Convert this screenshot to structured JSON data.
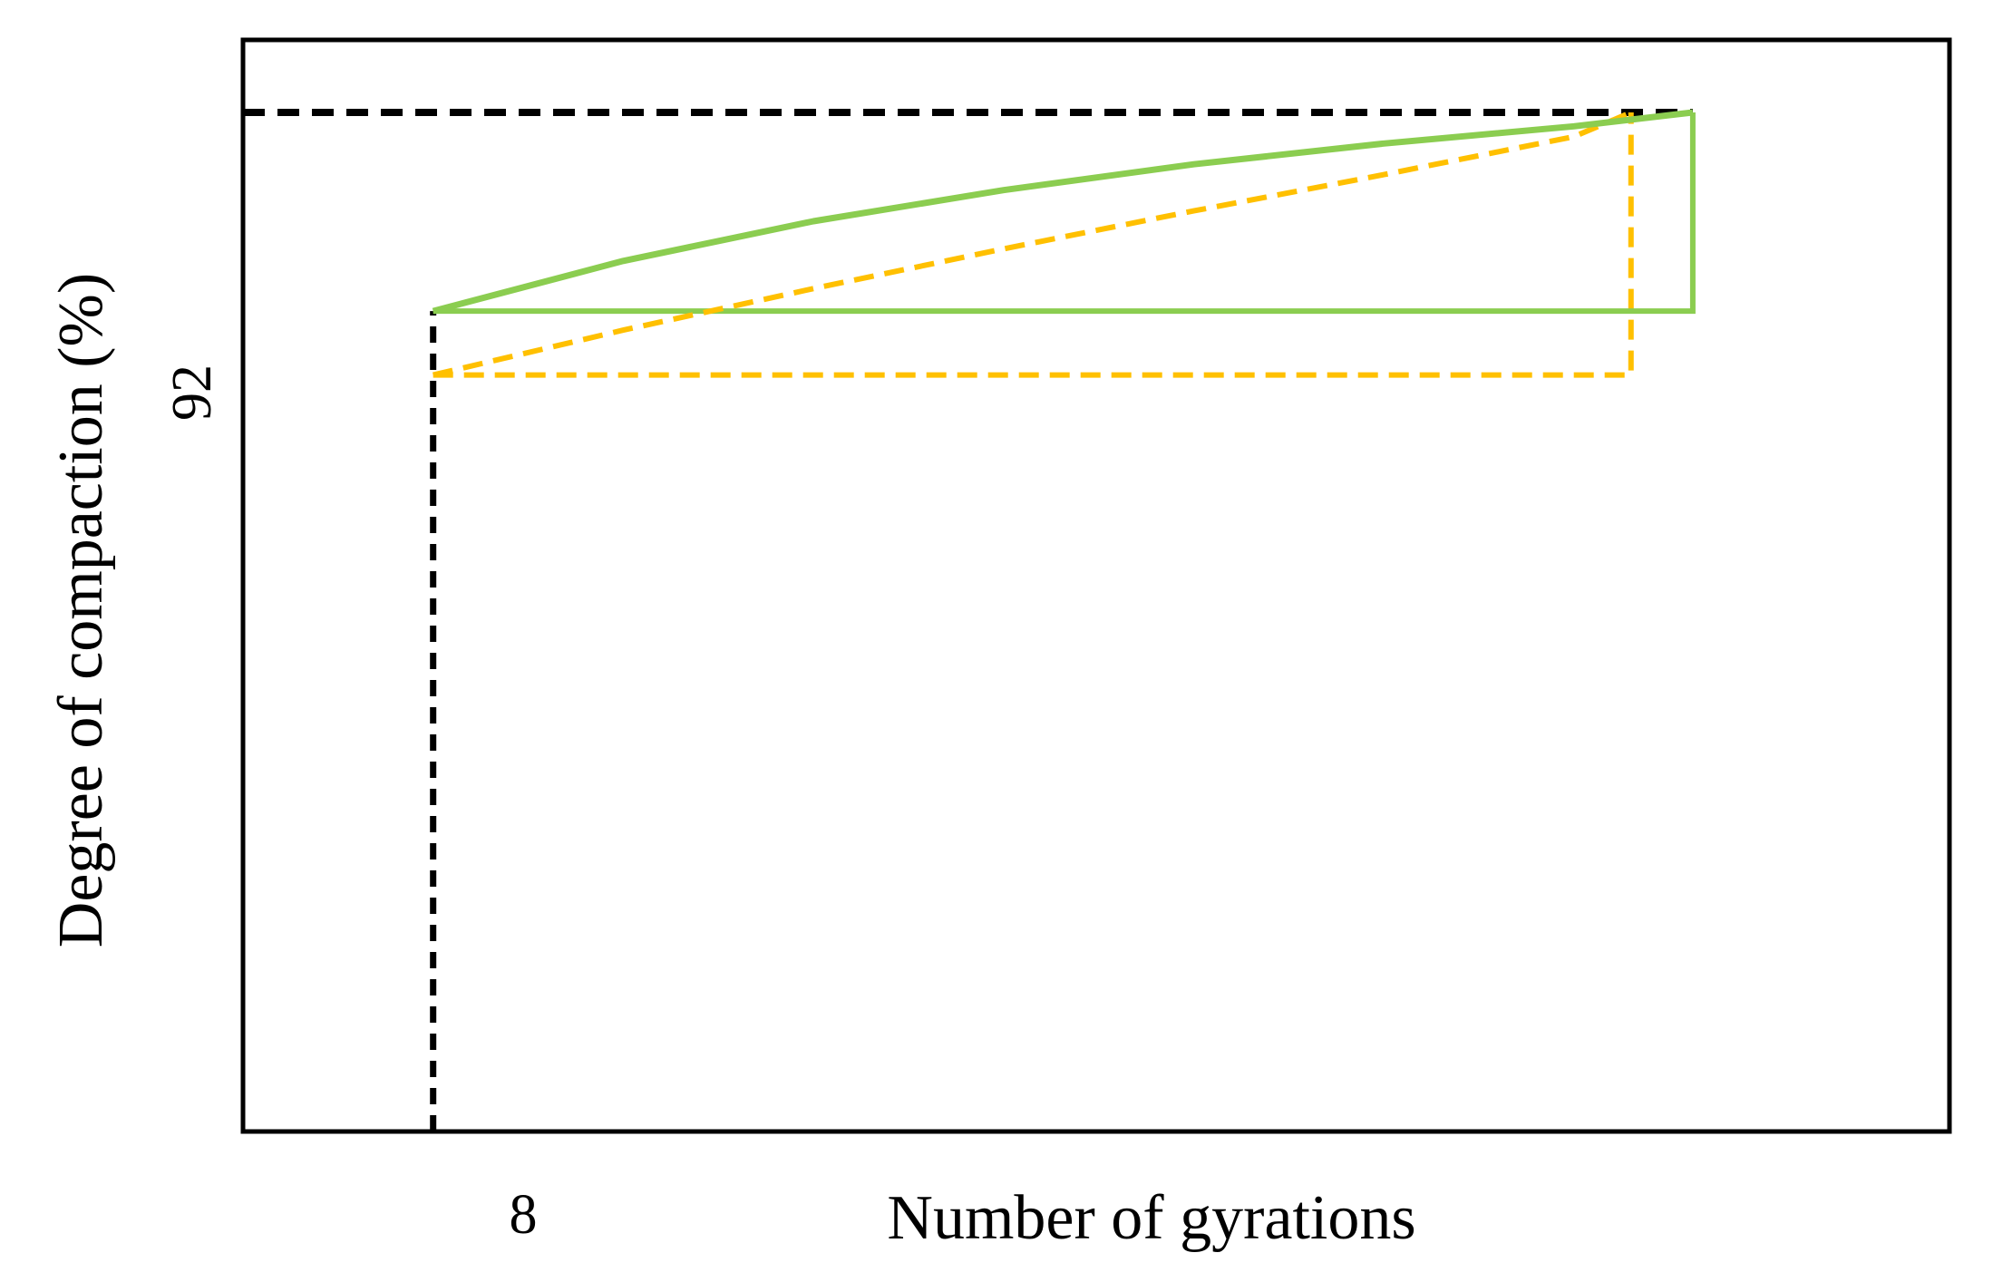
{
  "chart_data": {
    "type": "line",
    "title": "",
    "xlabel": "Number of gyrations",
    "ylabel": "Degree of compaction (%)",
    "x_ticks": [
      {
        "value": 8,
        "label": "8"
      }
    ],
    "y_ticks": [
      {
        "value": 92,
        "label": "92"
      }
    ],
    "grid": false,
    "legend": "none",
    "colors": {
      "axes": "#000000",
      "reference": "#000000",
      "green": "#8BCD50",
      "orange": "#FFC000"
    },
    "xlim": [
      0,
      71.8
    ],
    "ylim": [
      80.2,
      92.84
    ],
    "reference_lines": [
      {
        "name": "",
        "style": "dashed",
        "x": [
          0,
          8,
          8
        ],
        "y": [
          80.2,
          80.2,
          80.2
        ]
      }
    ],
    "series": [
      {
        "name": "",
        "color": "#8BCD50",
        "style": "solid",
        "curve": {
          "x": [
            8,
            16,
            24,
            32,
            40,
            48,
            56,
            61.0
          ],
          "y": [
            89.7,
            90.28,
            90.74,
            91.1,
            91.4,
            91.64,
            91.84,
            92.0
          ]
        },
        "rectangle": {
          "x": [
            8,
            37.0
          ],
          "y": [
            89.7,
            92.0
          ]
        }
      },
      {
        "name": "",
        "color": "#FFC000",
        "style": "dashed",
        "curve": {
          "x": [
            8,
            16,
            24,
            32,
            40,
            48,
            56,
            58.4
          ],
          "y": [
            88.96,
            89.48,
            89.96,
            90.42,
            90.86,
            91.28,
            91.72,
            92.0
          ]
        },
        "rectangle": {
          "x": [
            8,
            34.4
          ],
          "y": [
            88.96,
            92.0
          ]
        }
      }
    ]
  }
}
